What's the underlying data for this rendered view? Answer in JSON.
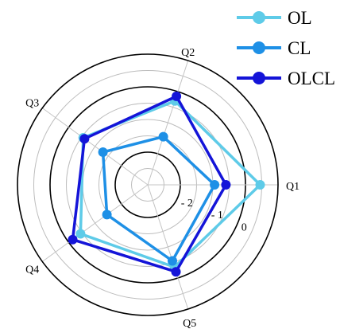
{
  "chart_data": {
    "type": "radar",
    "categories": [
      "Q1",
      "Q2",
      "Q3",
      "Q4",
      "Q5"
    ],
    "radial_scale": {
      "min": -3,
      "max": 1,
      "grid_step": 0.5,
      "highlight_circles": [
        -2,
        0
      ],
      "tick_labels": [
        "- 2",
        "- 1",
        "0"
      ]
    },
    "series": [
      {
        "name": "OL",
        "color": "#5ecbe8",
        "values": [
          0.45,
          -0.3,
          -0.55,
          -0.45,
          -0.35
        ]
      },
      {
        "name": "CL",
        "color": "#1e90e6",
        "values": [
          -0.95,
          -1.45,
          -1.3,
          -1.45,
          -0.55
        ]
      },
      {
        "name": "OLCL",
        "color": "#1414d8",
        "values": [
          -0.6,
          -0.15,
          -0.6,
          -0.15,
          -0.2
        ]
      }
    ],
    "legend_position": "top-right",
    "grid": true,
    "title": "",
    "xlabel": "",
    "ylabel": ""
  }
}
